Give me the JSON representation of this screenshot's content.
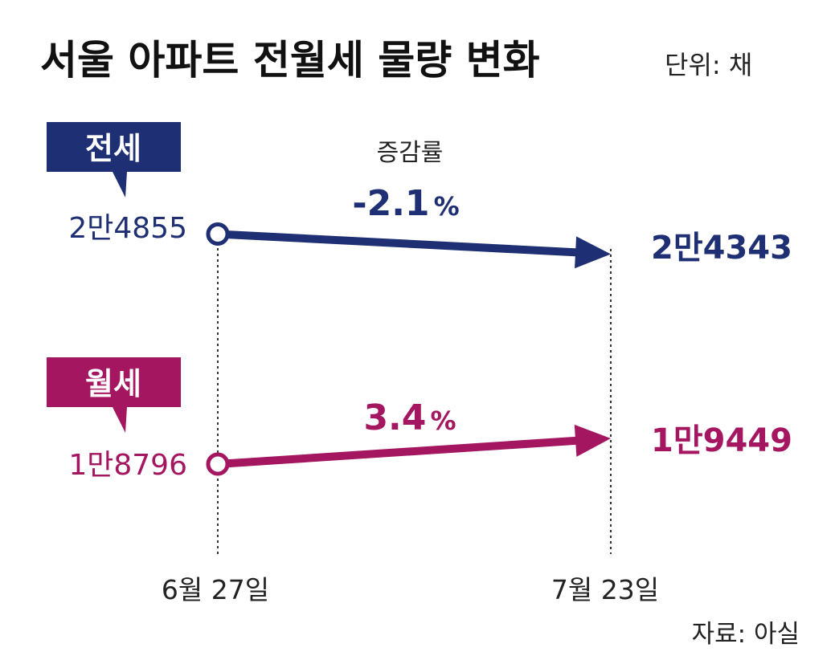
{
  "chart_data": {
    "type": "line",
    "title": "서울 아파트 전월세 물량 변화",
    "unit_label": "단위: 채",
    "rate_label": "증감률",
    "source": "자료: 아실",
    "x": [
      "6월 27일",
      "7월 23일"
    ],
    "series": [
      {
        "name": "전세",
        "values": [
          24855,
          24343
        ],
        "value_labels": [
          "2만4855",
          "2만4343"
        ],
        "change_number": "-2.1",
        "change_sign": "%",
        "color": "#1e2f73"
      },
      {
        "name": "월세",
        "values": [
          18796,
          19449
        ],
        "value_labels": [
          "1만8796",
          "1만9449"
        ],
        "change_number": "3.4",
        "change_sign": "%",
        "color": "#a4165f"
      }
    ]
  }
}
